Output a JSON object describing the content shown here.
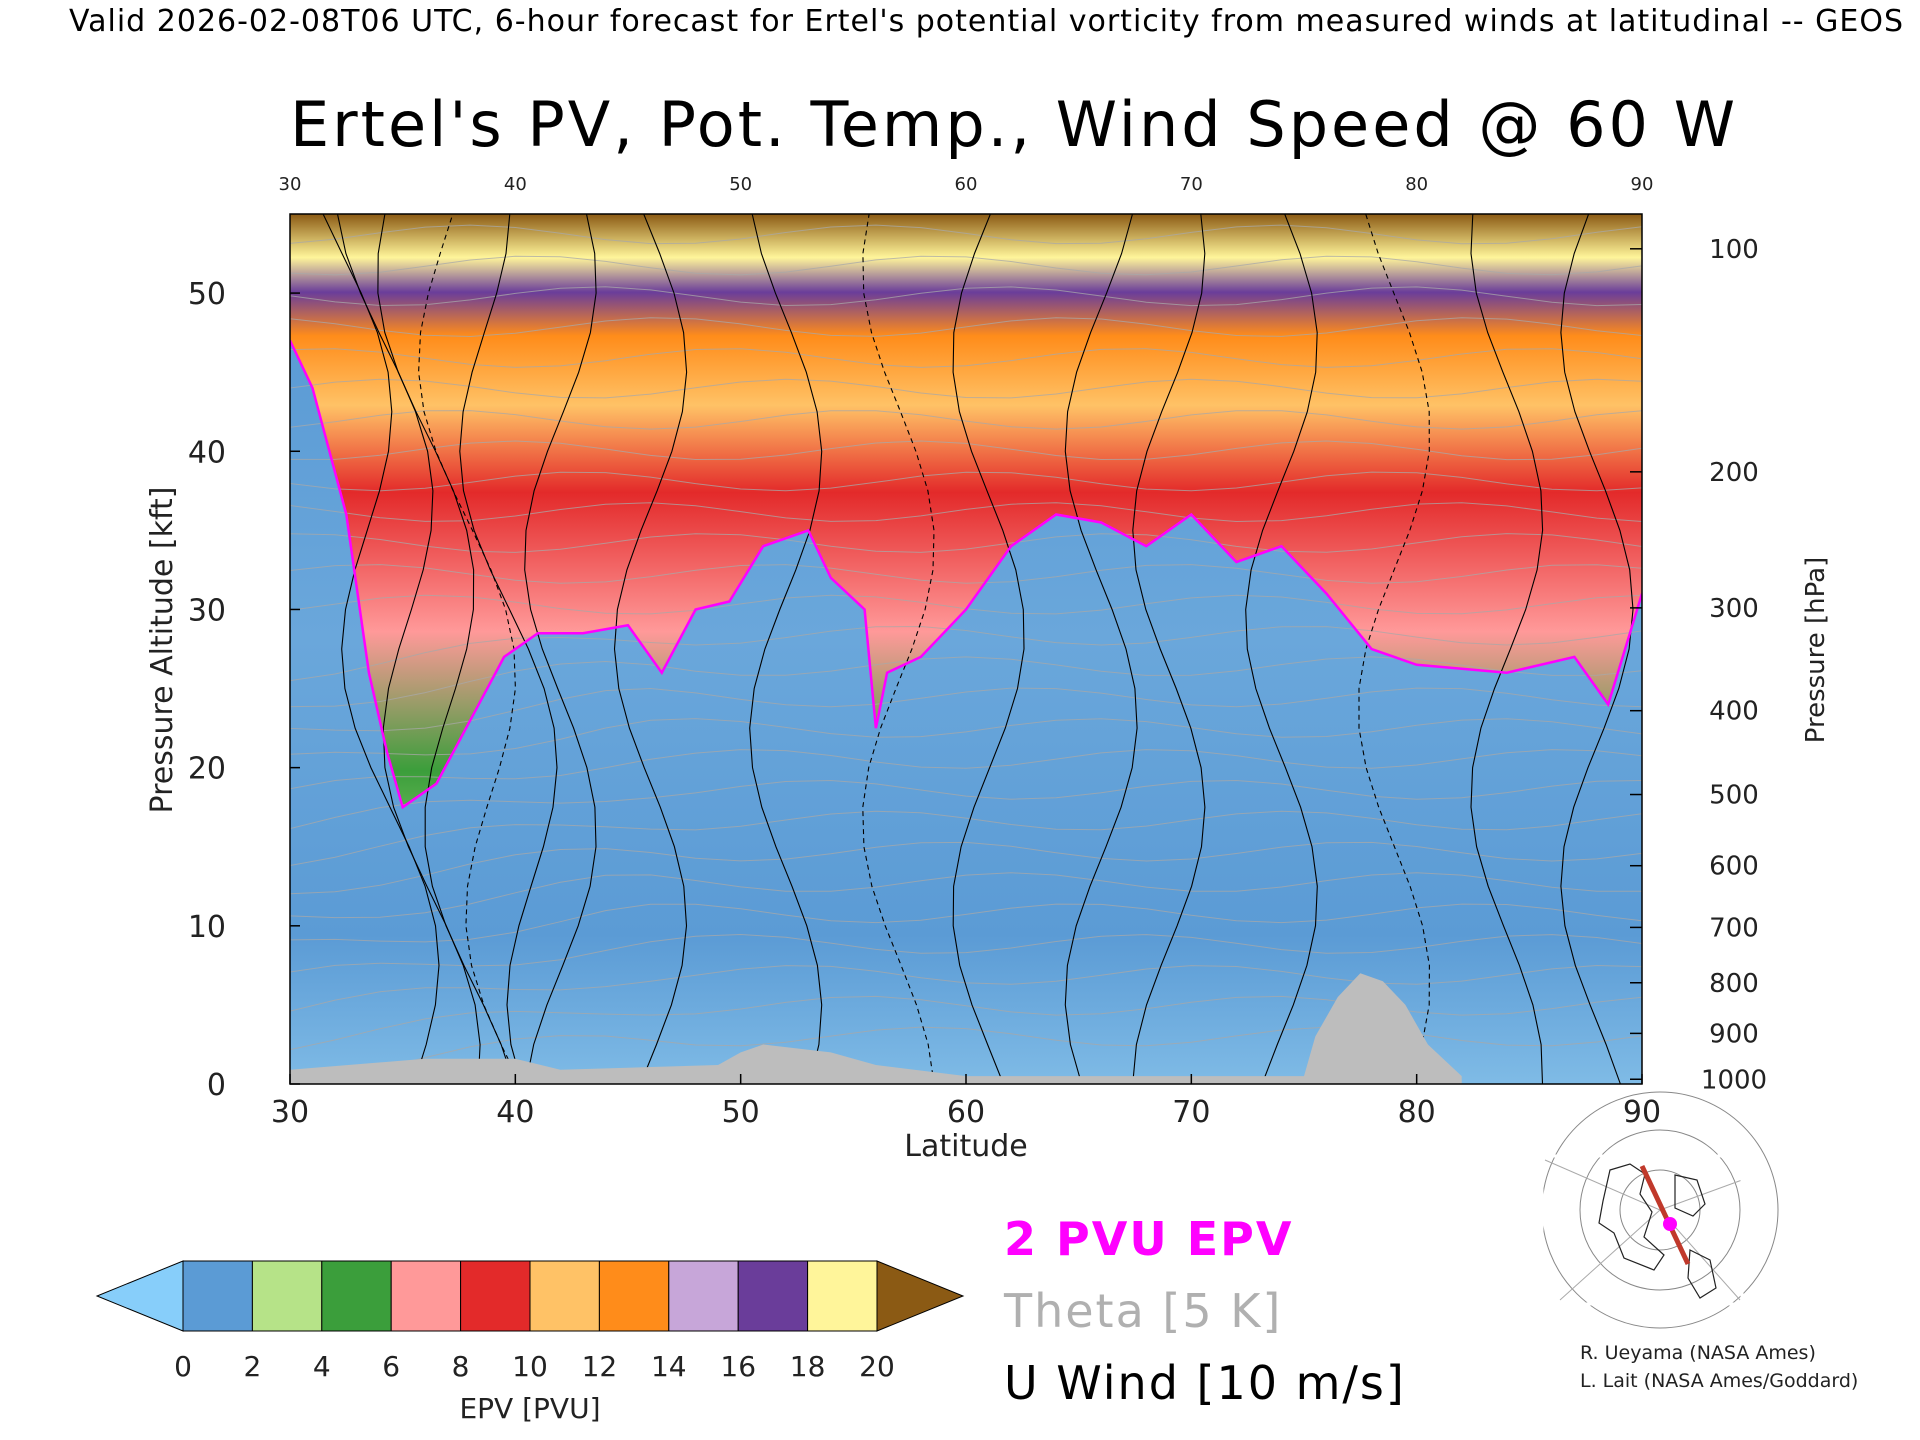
{
  "header": "Valid 2026-02-08T06 UTC, 6-hour forecast for Ertel's potential vorticity from measured winds at latitudinal -- GEOS",
  "chart_data": {
    "type": "heatmap",
    "title": "Ertel's PV, Pot. Temp., Wind Speed @ 60 W",
    "xlabel": "Latitude",
    "ylabel_left": "Pressure Altitude [kft]",
    "ylabel_right": "Pressure [hPa]",
    "xlim": [
      30,
      90
    ],
    "ylim": [
      0,
      55
    ],
    "x_ticks": [
      30,
      40,
      50,
      60,
      70,
      80,
      90
    ],
    "top_x_ticks": [
      30,
      40,
      50,
      60,
      70,
      80,
      90
    ],
    "y_ticks": [
      0,
      10,
      20,
      30,
      40,
      50
    ],
    "right_ticks": [
      {
        "label": "100",
        "kft": 52.8
      },
      {
        "label": "200",
        "kft": 38.7
      },
      {
        "label": "300",
        "kft": 30.1
      },
      {
        "label": "400",
        "kft": 23.6
      },
      {
        "label": "500",
        "kft": 18.3
      },
      {
        "label": "600",
        "kft": 13.8
      },
      {
        "label": "700",
        "kft": 9.9
      },
      {
        "label": "800",
        "kft": 6.4
      },
      {
        "label": "900",
        "kft": 3.2
      },
      {
        "label": "1000",
        "kft": 0.3
      }
    ],
    "tropopause_2pvu_kft": [
      {
        "lat": 30.0,
        "kft": 47
      },
      {
        "lat": 31.0,
        "kft": 44
      },
      {
        "lat": 32.5,
        "kft": 36
      },
      {
        "lat": 33.5,
        "kft": 26
      },
      {
        "lat": 34.3,
        "kft": 21
      },
      {
        "lat": 35.0,
        "kft": 17.5
      },
      {
        "lat": 36.5,
        "kft": 19
      },
      {
        "lat": 38.0,
        "kft": 23
      },
      {
        "lat": 39.5,
        "kft": 27
      },
      {
        "lat": 41.0,
        "kft": 28.5
      },
      {
        "lat": 43.0,
        "kft": 28.5
      },
      {
        "lat": 45.0,
        "kft": 29
      },
      {
        "lat": 46.5,
        "kft": 26
      },
      {
        "lat": 48.0,
        "kft": 30
      },
      {
        "lat": 49.5,
        "kft": 30.5
      },
      {
        "lat": 51.0,
        "kft": 34
      },
      {
        "lat": 53.0,
        "kft": 35
      },
      {
        "lat": 54.0,
        "kft": 32
      },
      {
        "lat": 55.5,
        "kft": 30
      },
      {
        "lat": 56.0,
        "kft": 22.5
      },
      {
        "lat": 56.5,
        "kft": 26
      },
      {
        "lat": 58.0,
        "kft": 27
      },
      {
        "lat": 60.0,
        "kft": 30
      },
      {
        "lat": 62.0,
        "kft": 34
      },
      {
        "lat": 64.0,
        "kft": 36
      },
      {
        "lat": 66.0,
        "kft": 35.5
      },
      {
        "lat": 68.0,
        "kft": 34
      },
      {
        "lat": 70.0,
        "kft": 36
      },
      {
        "lat": 72.0,
        "kft": 33
      },
      {
        "lat": 74.0,
        "kft": 34
      },
      {
        "lat": 76.0,
        "kft": 31
      },
      {
        "lat": 78.0,
        "kft": 27.5
      },
      {
        "lat": 80.0,
        "kft": 26.5
      },
      {
        "lat": 84.0,
        "kft": 26
      },
      {
        "lat": 87.0,
        "kft": 27
      },
      {
        "lat": 88.5,
        "kft": 24
      },
      {
        "lat": 90.0,
        "kft": 31
      }
    ],
    "terrain_kft": [
      {
        "lat": 30,
        "kft": 0.9
      },
      {
        "lat": 36,
        "kft": 1.6
      },
      {
        "lat": 40,
        "kft": 1.6
      },
      {
        "lat": 42,
        "kft": 0.9
      },
      {
        "lat": 49,
        "kft": 1.2
      },
      {
        "lat": 50,
        "kft": 2.0
      },
      {
        "lat": 51,
        "kft": 2.5
      },
      {
        "lat": 54,
        "kft": 2.0
      },
      {
        "lat": 56,
        "kft": 1.2
      },
      {
        "lat": 60,
        "kft": 0.5
      },
      {
        "lat": 75,
        "kft": 0.5
      },
      {
        "lat": 75.5,
        "kft": 3.0
      },
      {
        "lat": 76.5,
        "kft": 5.5
      },
      {
        "lat": 77.5,
        "kft": 7.0
      },
      {
        "lat": 78.5,
        "kft": 6.5
      },
      {
        "lat": 79.5,
        "kft": 5.0
      },
      {
        "lat": 80.5,
        "kft": 2.5
      },
      {
        "lat": 82,
        "kft": 0.5
      }
    ],
    "colorbar": {
      "label": "EPV [PVU]",
      "ticks": [
        "0",
        "2",
        "4",
        "6",
        "8",
        "10",
        "12",
        "14",
        "16",
        "18",
        "20"
      ],
      "colors": [
        "#87cefa",
        "#5b9bd5",
        "#b6e388",
        "#3b9e3b",
        "#ff9999",
        "#e32a2a",
        "#ffc266",
        "#ff8c1a",
        "#c7a6d9",
        "#6a3d9a",
        "#fff59a",
        "#8b5a14"
      ]
    },
    "legend": {
      "pvu": "2 PVU EPV",
      "theta": "Theta [5 K]",
      "wind": "U Wind [10 m/s]",
      "pvu_color": "#ff00ff",
      "theta_color": "#b0b0b0",
      "wind_color": "#000000"
    }
  },
  "credits": {
    "line1": "R. Ueyama (NASA Ames)",
    "line2": "L. Lait (NASA Ames/Goddard)"
  }
}
